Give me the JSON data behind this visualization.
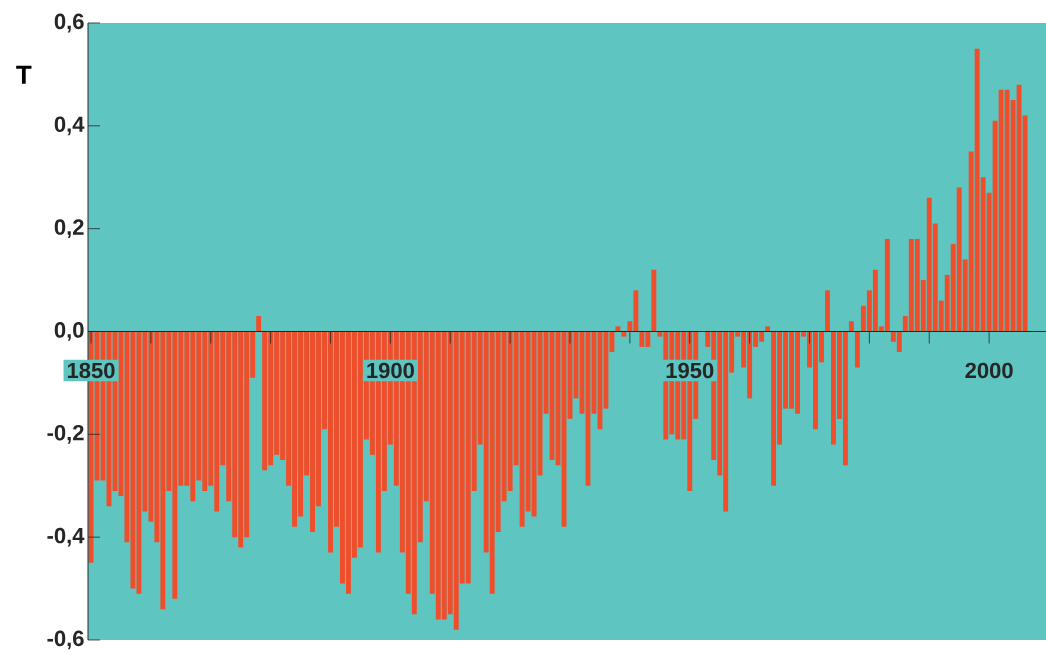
{
  "chart_data": {
    "type": "bar",
    "ylabel": "T",
    "color": "#f04e2a",
    "x": [
      1850,
      1851,
      1852,
      1853,
      1854,
      1855,
      1856,
      1857,
      1858,
      1859,
      1860,
      1861,
      1862,
      1863,
      1864,
      1865,
      1866,
      1867,
      1868,
      1869,
      1870,
      1871,
      1872,
      1873,
      1874,
      1875,
      1876,
      1877,
      1878,
      1879,
      1880,
      1881,
      1882,
      1883,
      1884,
      1885,
      1886,
      1887,
      1888,
      1889,
      1890,
      1891,
      1892,
      1893,
      1894,
      1895,
      1896,
      1897,
      1898,
      1899,
      1900,
      1901,
      1902,
      1903,
      1904,
      1905,
      1906,
      1907,
      1908,
      1909,
      1910,
      1911,
      1912,
      1913,
      1914,
      1915,
      1916,
      1917,
      1918,
      1919,
      1920,
      1921,
      1922,
      1923,
      1924,
      1925,
      1926,
      1927,
      1928,
      1929,
      1930,
      1931,
      1932,
      1933,
      1934,
      1935,
      1936,
      1937,
      1938,
      1939,
      1940,
      1941,
      1942,
      1943,
      1944,
      1945,
      1946,
      1947,
      1948,
      1949,
      1950,
      1951,
      1952,
      1953,
      1954,
      1955,
      1956,
      1957,
      1958,
      1959,
      1960,
      1961,
      1962,
      1963,
      1964,
      1965,
      1966,
      1967,
      1968,
      1969,
      1970,
      1971,
      1972,
      1973,
      1974,
      1975,
      1976,
      1977,
      1978,
      1979,
      1980,
      1981,
      1982,
      1983,
      1984,
      1985,
      1986,
      1987,
      1988,
      1989,
      1990,
      1991,
      1992,
      1993,
      1994,
      1995,
      1996,
      1997,
      1998,
      1999,
      2000,
      2001,
      2002,
      2003,
      2004,
      2005,
      2006
    ],
    "values": [
      -0.45,
      -0.29,
      -0.29,
      -0.34,
      -0.31,
      -0.32,
      -0.41,
      -0.5,
      -0.51,
      -0.35,
      -0.37,
      -0.41,
      -0.54,
      -0.31,
      -0.52,
      -0.3,
      -0.3,
      -0.33,
      -0.29,
      -0.31,
      -0.3,
      -0.35,
      -0.26,
      -0.33,
      -0.4,
      -0.42,
      -0.4,
      -0.09,
      0.03,
      -0.27,
      -0.26,
      -0.24,
      -0.25,
      -0.3,
      -0.38,
      -0.36,
      -0.28,
      -0.39,
      -0.34,
      -0.19,
      -0.43,
      -0.38,
      -0.49,
      -0.51,
      -0.44,
      -0.42,
      -0.21,
      -0.24,
      -0.43,
      -0.31,
      -0.22,
      -0.3,
      -0.43,
      -0.51,
      -0.55,
      -0.41,
      -0.33,
      -0.51,
      -0.56,
      -0.56,
      -0.55,
      -0.58,
      -0.49,
      -0.49,
      -0.31,
      -0.22,
      -0.43,
      -0.51,
      -0.39,
      -0.33,
      -0.31,
      -0.26,
      -0.38,
      -0.35,
      -0.36,
      -0.28,
      -0.16,
      -0.25,
      -0.26,
      -0.38,
      -0.17,
      -0.13,
      -0.16,
      -0.3,
      -0.16,
      -0.19,
      -0.15,
      -0.04,
      0.01,
      -0.01,
      0.02,
      0.08,
      -0.03,
      -0.03,
      0.12,
      -0.01,
      -0.21,
      -0.2,
      -0.21,
      -0.21,
      -0.31,
      -0.17,
      null,
      -0.03,
      -0.25,
      -0.28,
      -0.35,
      -0.08,
      -0.01,
      -0.07,
      -0.13,
      -0.03,
      -0.02,
      0.01,
      -0.3,
      -0.22,
      -0.15,
      -0.15,
      -0.16,
      -0.01,
      -0.07,
      -0.19,
      -0.06,
      0.08,
      -0.22,
      -0.17,
      -0.26,
      0.02,
      -0.07,
      0.05,
      0.08,
      0.12,
      0.01,
      0.18,
      -0.02,
      -0.04,
      0.03,
      0.18,
      0.18,
      0.1,
      0.26,
      0.21,
      0.06,
      0.11,
      0.17,
      0.28,
      0.14,
      0.35,
      0.55,
      0.3,
      0.27,
      0.41,
      0.47,
      0.47,
      0.45,
      0.48,
      0.42
    ],
    "xlim": [
      1849.5,
      2009.5
    ],
    "xticks": [
      1850,
      {
        "value": 1860,
        "label": null
      },
      {
        "value": 1870,
        "label": null
      },
      {
        "value": 1880,
        "label": null
      },
      {
        "value": 1890,
        "label": null
      },
      1900,
      {
        "value": 1910,
        "label": null
      },
      {
        "value": 1920,
        "label": null
      },
      {
        "value": 1930,
        "label": null
      },
      {
        "value": 1940,
        "label": null
      },
      1950,
      {
        "value": 1960,
        "label": null
      },
      {
        "value": 1970,
        "label": null
      },
      {
        "value": 1980,
        "label": null
      },
      {
        "value": 1990,
        "label": null
      },
      2000
    ],
    "ylim": [
      -0.6,
      0.6
    ],
    "yticks": [
      {
        "value": -0.6,
        "label": "-0,6"
      },
      {
        "value": -0.4,
        "label": "-0,4"
      },
      {
        "value": -0.2,
        "label": "-0,2"
      },
      {
        "value": 0,
        "label": "0,0"
      },
      {
        "value": 0.2,
        "label": "0,2"
      },
      {
        "value": 0.4,
        "label": "0,4"
      },
      {
        "value": 0.6,
        "label": "0,6"
      }
    ]
  }
}
